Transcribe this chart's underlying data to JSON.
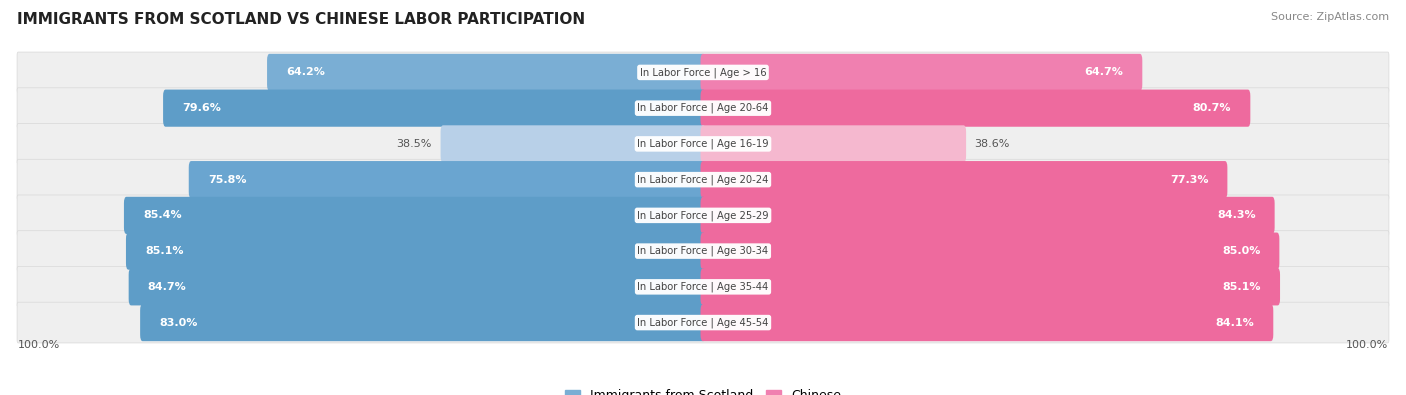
{
  "title": "IMMIGRANTS FROM SCOTLAND VS CHINESE LABOR PARTICIPATION",
  "source": "Source: ZipAtlas.com",
  "categories": [
    "In Labor Force | Age > 16",
    "In Labor Force | Age 20-64",
    "In Labor Force | Age 16-19",
    "In Labor Force | Age 20-24",
    "In Labor Force | Age 25-29",
    "In Labor Force | Age 30-34",
    "In Labor Force | Age 35-44",
    "In Labor Force | Age 45-54"
  ],
  "scotland_values": [
    64.2,
    79.6,
    38.5,
    75.8,
    85.4,
    85.1,
    84.7,
    83.0
  ],
  "chinese_values": [
    64.7,
    80.7,
    38.6,
    77.3,
    84.3,
    85.0,
    85.1,
    84.1
  ],
  "scotland_bar_colors": [
    "#7aaed4",
    "#5e9dc8",
    "#b8d0e8",
    "#6aa5d0",
    "#5e9dc8",
    "#5e9dc8",
    "#5e9dc8",
    "#5e9dc8"
  ],
  "chinese_bar_colors": [
    "#f080b0",
    "#ee6a9e",
    "#f5b8cf",
    "#ee6a9e",
    "#ee6a9e",
    "#ee6a9e",
    "#ee6a9e",
    "#ee6a9e"
  ],
  "scotland_legend_color": "#7aaed4",
  "chinese_legend_color": "#f080b0",
  "row_bg_color": "#efefef",
  "row_bg_color_alt": "#e8e8e8",
  "label_dark": "#555555",
  "label_white": "#ffffff",
  "center_label_color": "#444444",
  "x_axis_label": "100.0%",
  "max_value": 100.0,
  "bar_height": 0.68,
  "row_padding": 0.15
}
